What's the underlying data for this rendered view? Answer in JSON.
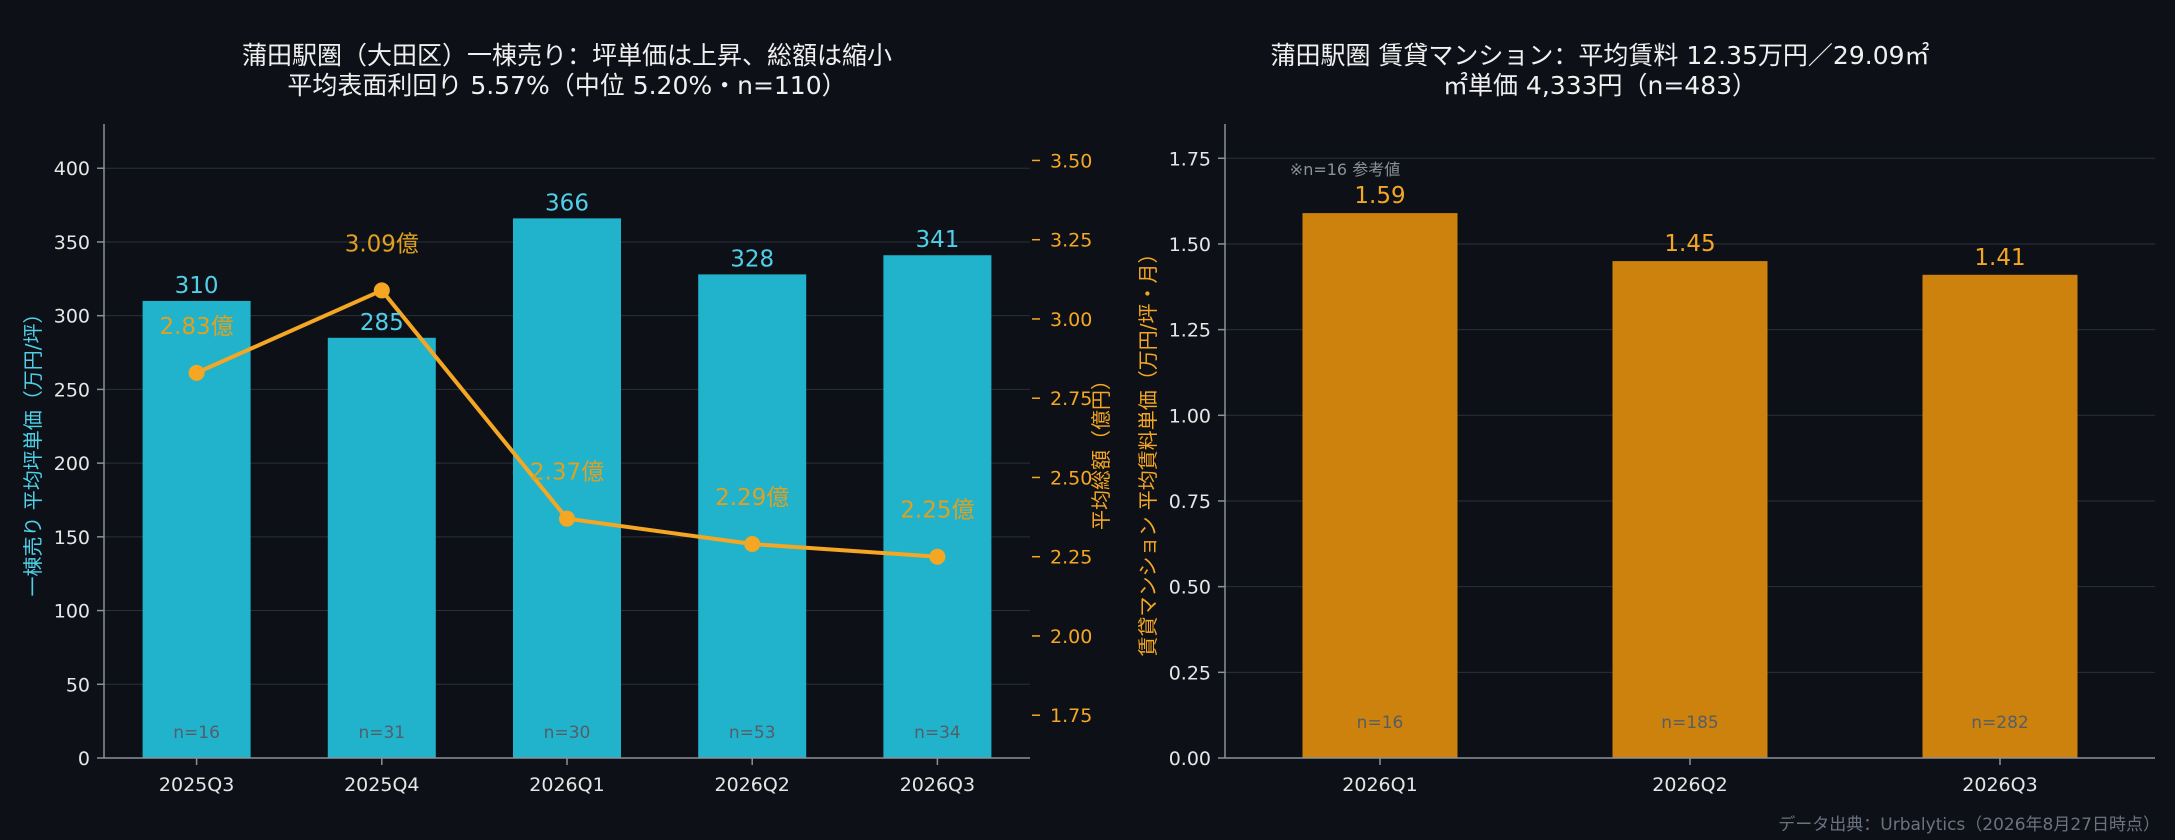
{
  "colors": {
    "background": "#0d1117",
    "bar_left": "#21b3cc",
    "bar_left_label": "#4fd0e8",
    "line": "#f5a623",
    "line_label": "#e0a020",
    "bar_right": "#cc820c",
    "bar_right_label": "#f5a623",
    "n_label": "#555d69"
  },
  "left_chart": {
    "title_line1": "蒲田駅圏（大田区）一棟売り：坪単価は上昇、総額は縮小",
    "title_line2": "平均表面利回り 5.57%（中位 5.20%・n=110）",
    "ylabel_left": "一棟売り 平均坪単価（万円/坪）",
    "ylabel_right": "平均総額（億円）",
    "n_labels": [
      "n=16",
      "n=31",
      "n=30",
      "n=53",
      "n=34"
    ],
    "bar_value_labels": [
      "310",
      "285",
      "366",
      "328",
      "341"
    ],
    "line_value_labels": [
      "2.83億",
      "3.09億",
      "2.37億",
      "2.29億",
      "2.25億"
    ]
  },
  "right_chart": {
    "title_line1": "蒲田駅圏 賃貸マンション：平均賃料 12.35万円／29.09㎡",
    "title_line2": "㎡単価 4,333円（n=483）",
    "ylabel": "賃貸マンション 平均賃料単価（万円/坪・月）",
    "note": "※n=16 参考値",
    "n_labels": [
      "n=16",
      "n=185",
      "n=282"
    ],
    "bar_value_labels": [
      "1.59",
      "1.45",
      "1.41"
    ]
  },
  "source": "データ出典：Urbalytics（2026年8月27日時点）",
  "chart_data": [
    {
      "type": "bar",
      "title": "蒲田駅圏（大田区）一棟売り：坪単価は上昇、総額は縮小 平均表面利回り 5.57%（中位 5.20%・n=110）",
      "categories": [
        "2025Q3",
        "2025Q4",
        "2026Q1",
        "2026Q2",
        "2026Q3"
      ],
      "series": [
        {
          "name": "一棟売り 平均坪単価（万円/坪）",
          "type": "bar",
          "axis": "left",
          "values": [
            310,
            285,
            366,
            328,
            341
          ]
        },
        {
          "name": "平均総額（億円）",
          "type": "line",
          "axis": "right",
          "values": [
            2.83,
            3.09,
            2.37,
            2.29,
            2.25
          ]
        }
      ],
      "sample_sizes": [
        16,
        31,
        30,
        53,
        34
      ],
      "xlabel": "",
      "ylabel": "一棟売り 平均坪単価（万円/坪）",
      "ylabel_right": "平均総額（億円）",
      "ylim": [
        0,
        430
      ],
      "ylim_right": [
        1.615,
        3.615
      ],
      "yticks": [
        0,
        50,
        100,
        150,
        200,
        250,
        300,
        350,
        400
      ],
      "yticks_right": [
        1.75,
        2.0,
        2.25,
        2.5,
        2.75,
        3.0,
        3.25,
        3.5
      ],
      "grid": true
    },
    {
      "type": "bar",
      "title": "蒲田駅圏 賃貸マンション：平均賃料 12.35万円／29.09㎡ ㎡単価 4,333円（n=483）",
      "categories": [
        "2026Q1",
        "2026Q2",
        "2026Q3"
      ],
      "values": [
        1.59,
        1.45,
        1.41
      ],
      "sample_sizes": [
        16,
        185,
        282
      ],
      "xlabel": "",
      "ylabel": "賃貸マンション 平均賃料単価（万円/坪・月）",
      "ylim": [
        0,
        1.85
      ],
      "yticks": [
        0.0,
        0.25,
        0.5,
        0.75,
        1.0,
        1.25,
        1.5,
        1.75
      ],
      "grid": true
    }
  ]
}
